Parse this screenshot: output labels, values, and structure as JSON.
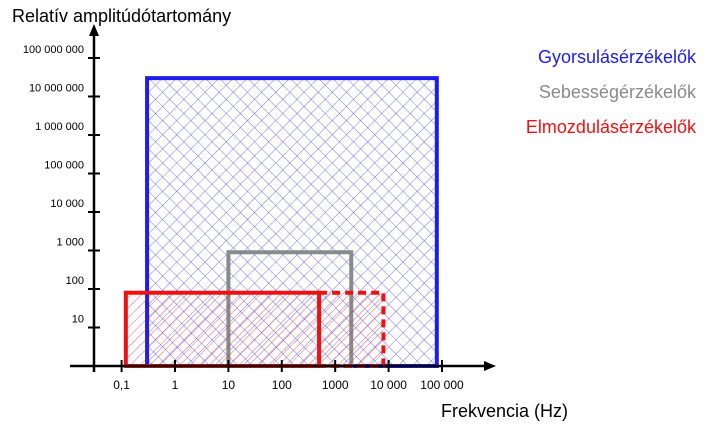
{
  "chart_data": {
    "type": "area",
    "title": "",
    "ylabel": "Relatív amplitúdótartomány",
    "xlabel": "Frekvencia (Hz)",
    "x_scale": "log",
    "y_scale": "log",
    "x_ticks": [
      {
        "value": 0.1,
        "label": "0,1"
      },
      {
        "value": 1,
        "label": "1"
      },
      {
        "value": 10,
        "label": "10"
      },
      {
        "value": 100,
        "label": "100"
      },
      {
        "value": 1000,
        "label": "1000"
      },
      {
        "value": 10000,
        "label": "10 000"
      },
      {
        "value": 100000,
        "label": "100 000"
      }
    ],
    "y_ticks": [
      {
        "value": 10,
        "label": "10"
      },
      {
        "value": 100,
        "label": "100"
      },
      {
        "value": 1000,
        "label": "1 000"
      },
      {
        "value": 10000,
        "label": "10 000"
      },
      {
        "value": 100000,
        "label": "100 000"
      },
      {
        "value": 1000000,
        "label": "1 000 000"
      },
      {
        "value": 10000000,
        "label": "10 000 000"
      },
      {
        "value": 100000000,
        "label": "100 000 000"
      }
    ],
    "xlim": [
      0.03,
      300000
    ],
    "ylim": [
      1,
      200000000
    ],
    "legend_position": "top-right",
    "series": [
      {
        "name": "Gyorsulásérzékelők",
        "color": "#1c1cee",
        "hatch": "cross",
        "regions": [
          {
            "x": [
              0.3,
              80000
            ],
            "y": [
              1,
              30000000
            ],
            "style": "solid"
          }
        ]
      },
      {
        "name": "Sebességérzékelők",
        "color": "#8a8a8a",
        "hatch": "none",
        "regions": [
          {
            "x": [
              10,
              2000
            ],
            "y": [
              1,
              900
            ],
            "style": "solid"
          }
        ]
      },
      {
        "name": "Elmozdulásérzékelők",
        "color": "#ee1111",
        "hatch": "diagonal",
        "regions": [
          {
            "x": [
              0.12,
              500
            ],
            "y": [
              1,
              80
            ],
            "style": "solid"
          },
          {
            "x": [
              500,
              8000
            ],
            "y": [
              1,
              80
            ],
            "style": "dashed"
          }
        ]
      }
    ]
  }
}
